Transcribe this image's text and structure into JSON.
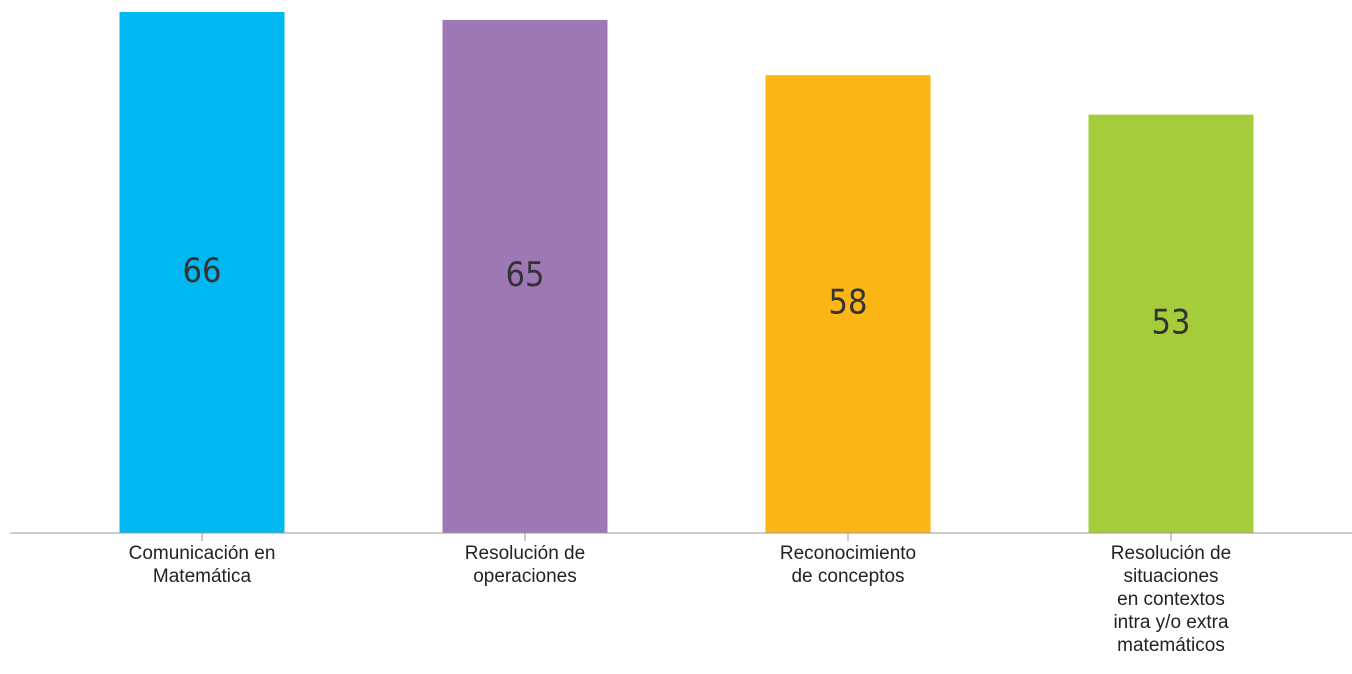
{
  "chart_data": {
    "type": "bar",
    "categories": [
      [
        "Comunicación en",
        "Matemática"
      ],
      [
        "Resolución de",
        "operaciones"
      ],
      [
        "Reconocimiento",
        "de conceptos"
      ],
      [
        "Resolución de",
        "situaciones",
        "en contextos",
        "intra y/o extra",
        "matemáticos"
      ]
    ],
    "values": [
      66,
      65,
      58,
      53
    ],
    "colors": [
      "#00b8f1",
      "#9e77b5",
      "#fbb615",
      "#a5cc3a"
    ],
    "ylim": [
      0,
      66
    ]
  }
}
